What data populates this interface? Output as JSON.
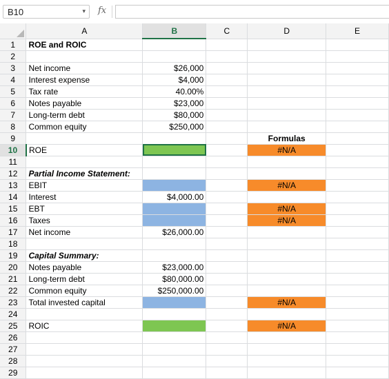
{
  "name_box": {
    "value": "B10",
    "caret": "▾"
  },
  "formula_bar": {
    "fx_label": "fx",
    "value": ""
  },
  "columns": [
    "A",
    "B",
    "C",
    "D",
    "E"
  ],
  "rows": [
    {
      "n": "1",
      "a": "ROE and ROIC",
      "b": "",
      "d": ""
    },
    {
      "n": "2",
      "a": "",
      "b": "",
      "d": ""
    },
    {
      "n": "3",
      "a": "Net income",
      "b": "$26,000",
      "d": ""
    },
    {
      "n": "4",
      "a": "Interest expense",
      "b": "$4,000",
      "d": ""
    },
    {
      "n": "5",
      "a": "Tax rate",
      "b": "40.00%",
      "d": ""
    },
    {
      "n": "6",
      "a": "Notes payable",
      "b": "$23,000",
      "d": ""
    },
    {
      "n": "7",
      "a": "Long-term debt",
      "b": "$80,000",
      "d": ""
    },
    {
      "n": "8",
      "a": "Common equity",
      "b": "$250,000",
      "d": ""
    },
    {
      "n": "9",
      "a": "",
      "b": "",
      "d": "Formulas"
    },
    {
      "n": "10",
      "a": "ROE",
      "b": "",
      "d": "#N/A"
    },
    {
      "n": "11",
      "a": "",
      "b": "",
      "d": ""
    },
    {
      "n": "12",
      "a": "Partial Income Statement:",
      "b": "",
      "d": ""
    },
    {
      "n": "13",
      "a": "EBIT",
      "b": "",
      "d": "#N/A"
    },
    {
      "n": "14",
      "a": "Interest",
      "b": "$4,000.00",
      "d": ""
    },
    {
      "n": "15",
      "a": "EBT",
      "b": "",
      "d": "#N/A"
    },
    {
      "n": "16",
      "a": "Taxes",
      "b": "",
      "d": "#N/A"
    },
    {
      "n": "17",
      "a": "Net income",
      "b": "$26,000.00",
      "d": ""
    },
    {
      "n": "18",
      "a": "",
      "b": "",
      "d": ""
    },
    {
      "n": "19",
      "a": "Capital Summary:",
      "b": "",
      "d": ""
    },
    {
      "n": "20",
      "a": "Notes payable",
      "b": "$23,000.00",
      "d": ""
    },
    {
      "n": "21",
      "a": "Long-term debt",
      "b": "$80,000.00",
      "d": ""
    },
    {
      "n": "22",
      "a": "Common equity",
      "b": "$250,000.00",
      "d": ""
    },
    {
      "n": "23",
      "a": "Total invested capital",
      "b": "",
      "d": "#N/A"
    },
    {
      "n": "24",
      "a": "",
      "b": "",
      "d": ""
    },
    {
      "n": "25",
      "a": "ROIC",
      "b": "",
      "d": "#N/A"
    },
    {
      "n": "26",
      "a": "",
      "b": "",
      "d": ""
    },
    {
      "n": "27",
      "a": "",
      "b": "",
      "d": ""
    },
    {
      "n": "28",
      "a": "",
      "b": "",
      "d": ""
    },
    {
      "n": "29",
      "a": "",
      "b": "",
      "d": ""
    }
  ],
  "colors": {
    "input_blue": "#8db4e2",
    "answer_green": "#7ec652",
    "formula_orange": "#f78b2a",
    "active_accent": "#1f7246"
  }
}
